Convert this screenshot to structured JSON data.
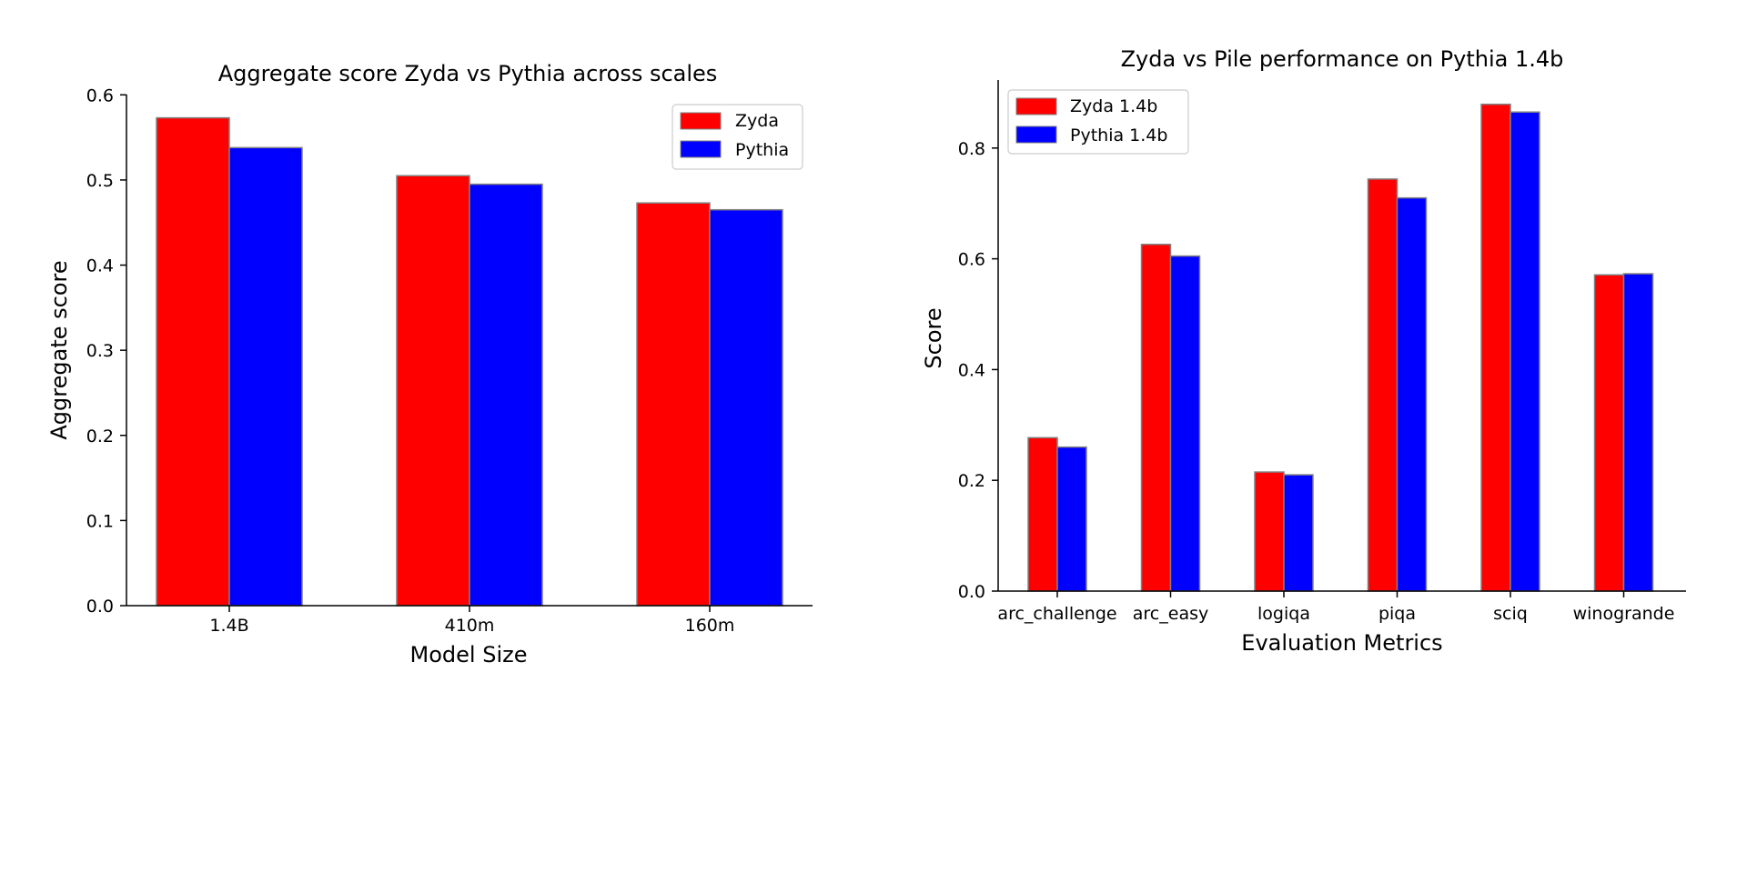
{
  "chart_data": [
    {
      "type": "bar",
      "title": "Aggregate score Zyda vs Pythia across scales",
      "xlabel": "Model Size",
      "ylabel": "Aggregate score",
      "categories": [
        "1.4B",
        "410m",
        "160m"
      ],
      "series": [
        {
          "name": "Zyda",
          "color": "#ff0000",
          "values": [
            0.573,
            0.505,
            0.473
          ]
        },
        {
          "name": "Pythia",
          "color": "#0000ff",
          "values": [
            0.538,
            0.495,
            0.465
          ]
        }
      ],
      "ylim": [
        0,
        0.6
      ],
      "yticks": [
        0.0,
        0.1,
        0.2,
        0.3,
        0.4,
        0.5,
        0.6
      ],
      "ytick_labels": [
        "0.0",
        "0.1",
        "0.2",
        "0.3",
        "0.4",
        "0.5",
        "0.6"
      ],
      "grid": false,
      "legend_position": "top-right"
    },
    {
      "type": "bar",
      "title": "Zyda vs Pile performance on Pythia 1.4b",
      "xlabel": "Evaluation Metrics",
      "ylabel": "Score",
      "categories": [
        "arc_challenge",
        "arc_easy",
        "logiqa",
        "piqa",
        "sciq",
        "winogrande"
      ],
      "series": [
        {
          "name": "Zyda 1.4b",
          "color": "#ff0000",
          "values": [
            0.277,
            0.626,
            0.215,
            0.744,
            0.879,
            0.571
          ]
        },
        {
          "name": "Pythia 1.4b",
          "color": "#0000ff",
          "values": [
            0.26,
            0.605,
            0.21,
            0.71,
            0.865,
            0.573
          ]
        }
      ],
      "ylim": [
        0,
        0.92
      ],
      "yticks": [
        0.0,
        0.2,
        0.4,
        0.6,
        0.8
      ],
      "ytick_labels": [
        "0.0",
        "0.2",
        "0.4",
        "0.6",
        "0.8"
      ],
      "grid": false,
      "legend_position": "top-left"
    }
  ]
}
